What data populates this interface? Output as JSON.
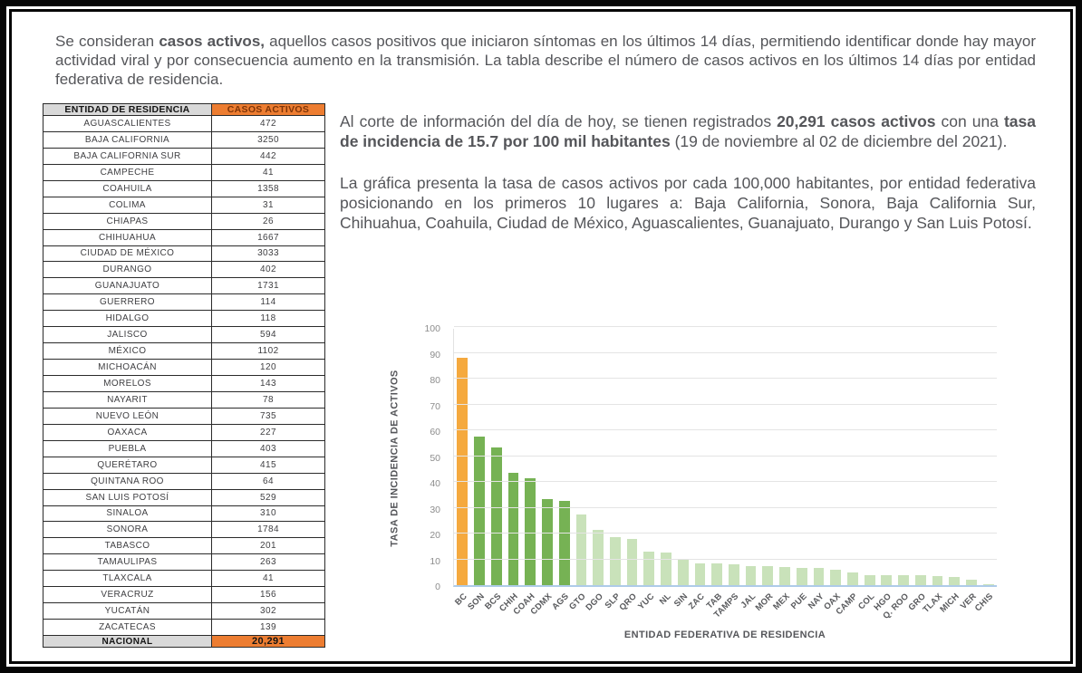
{
  "intro": {
    "parts": [
      {
        "t": "Se consideran ",
        "b": false
      },
      {
        "t": "casos activos,",
        "b": true
      },
      {
        "t": " aquellos casos positivos que iniciaron síntomas en los últimos 14 días, permitiendo identificar donde hay mayor actividad viral y por consecuencia aumento en la transmisión. La tabla describe el número de casos activos en los últimos 14 días por entidad federativa de residencia.",
        "b": false
      }
    ]
  },
  "paragraph1": {
    "parts": [
      {
        "t": "Al corte de información del día de hoy, se tienen registrados ",
        "b": false
      },
      {
        "t": "20,291 casos activos",
        "b": true
      },
      {
        "t": " con una ",
        "b": false
      },
      {
        "t": "tasa de incidencia de 15.7 por 100 mil habitantes",
        "b": true
      },
      {
        "t": " (19 de noviembre al 02 de diciembre del 2021).",
        "b": false
      }
    ]
  },
  "paragraph2": {
    "parts": [
      {
        "t": "La gráfica presenta la tasa de casos activos por cada 100,000 habitantes, por entidad federativa posicionando en los primeros 10 lugares a: Baja California, Sonora, Baja California Sur, Chihuahua, Coahuila, Ciudad de México, Aguascalientes, Guanajuato, Durango y San Luis Potosí.",
        "b": false
      }
    ]
  },
  "table": {
    "headers": [
      "ENTIDAD DE RESIDENCIA",
      "CASOS ACTIVOS"
    ],
    "rows": [
      [
        "AGUASCALIENTES",
        "472"
      ],
      [
        "BAJA CALIFORNIA",
        "3250"
      ],
      [
        "BAJA CALIFORNIA SUR",
        "442"
      ],
      [
        "CAMPECHE",
        "41"
      ],
      [
        "COAHUILA",
        "1358"
      ],
      [
        "COLIMA",
        "31"
      ],
      [
        "CHIAPAS",
        "26"
      ],
      [
        "CHIHUAHUA",
        "1667"
      ],
      [
        "CIUDAD DE MÉXICO",
        "3033"
      ],
      [
        "DURANGO",
        "402"
      ],
      [
        "GUANAJUATO",
        "1731"
      ],
      [
        "GUERRERO",
        "114"
      ],
      [
        "HIDALGO",
        "118"
      ],
      [
        "JALISCO",
        "594"
      ],
      [
        "MÉXICO",
        "1102"
      ],
      [
        "MICHOACÁN",
        "120"
      ],
      [
        "MORELOS",
        "143"
      ],
      [
        "NAYARIT",
        "78"
      ],
      [
        "NUEVO LEÓN",
        "735"
      ],
      [
        "OAXACA",
        "227"
      ],
      [
        "PUEBLA",
        "403"
      ],
      [
        "QUERÉTARO",
        "415"
      ],
      [
        "QUINTANA ROO",
        "64"
      ],
      [
        "SAN LUIS POTOSÍ",
        "529"
      ],
      [
        "SINALOA",
        "310"
      ],
      [
        "SONORA",
        "1784"
      ],
      [
        "TABASCO",
        "201"
      ],
      [
        "TAMAULIPAS",
        "263"
      ],
      [
        "TLAXCALA",
        "41"
      ],
      [
        "VERACRUZ",
        "156"
      ],
      [
        "YUCATÁN",
        "302"
      ],
      [
        "ZACATECAS",
        "139"
      ]
    ],
    "footer": [
      "NACIONAL",
      "20,291"
    ]
  },
  "chart_data": {
    "type": "bar",
    "categories": [
      "BC",
      "SON",
      "BCS",
      "CHIH",
      "COAH",
      "CDMX",
      "AGS",
      "GTO",
      "DGO",
      "SLP",
      "QRO",
      "YUC",
      "NL",
      "SIN",
      "ZAC",
      "TAB",
      "TAMPS",
      "JAL",
      "MOR",
      "MEX",
      "PUE",
      "NAY",
      "OAX",
      "CAMP",
      "COL",
      "HGO",
      "Q. ROO",
      "GRO",
      "TLAX",
      "MICH",
      "VER",
      "CHIS"
    ],
    "values": [
      88,
      57.5,
      53.5,
      43.5,
      41.5,
      33.5,
      32.5,
      27.5,
      21.5,
      18.5,
      18,
      13,
      12.5,
      10,
      8.5,
      8.5,
      8,
      7.5,
      7.5,
      7,
      6.5,
      6.5,
      6,
      5,
      4,
      4,
      4,
      4,
      3.5,
      3,
      2,
      0.4
    ],
    "colors": [
      "#f5a93e",
      "#76b254",
      "#76b254",
      "#76b254",
      "#76b254",
      "#76b254",
      "#76b254",
      "#c9e2ba",
      "#c9e2ba",
      "#c9e2ba",
      "#c9e2ba",
      "#c9e2ba",
      "#c9e2ba",
      "#c9e2ba",
      "#c9e2ba",
      "#c9e2ba",
      "#c9e2ba",
      "#c9e2ba",
      "#c9e2ba",
      "#c9e2ba",
      "#c9e2ba",
      "#c9e2ba",
      "#c9e2ba",
      "#c9e2ba",
      "#c9e2ba",
      "#c9e2ba",
      "#c9e2ba",
      "#c9e2ba",
      "#c9e2ba",
      "#c9e2ba",
      "#c9e2ba",
      "#c9e2ba"
    ],
    "title": "",
    "xlabel": "ENTIDAD FEDERATIVA DE RESIDENCIA",
    "ylabel": "TASA DE INCIDENCIA DE ACTIVOS",
    "ylim": [
      0,
      100
    ],
    "yticks": [
      0,
      10,
      20,
      30,
      40,
      50,
      60,
      70,
      80,
      90,
      100
    ],
    "grid": true,
    "legend": false
  },
  "colors": {
    "accent_orange": "#ed7d31",
    "bar_orange": "#f5a93e",
    "bar_dark_green": "#76b254",
    "bar_light_green": "#c9e2ba",
    "header_gray": "#d9d9d9",
    "body_text": "#55565a",
    "baseline_blue": "#aecbe8"
  }
}
